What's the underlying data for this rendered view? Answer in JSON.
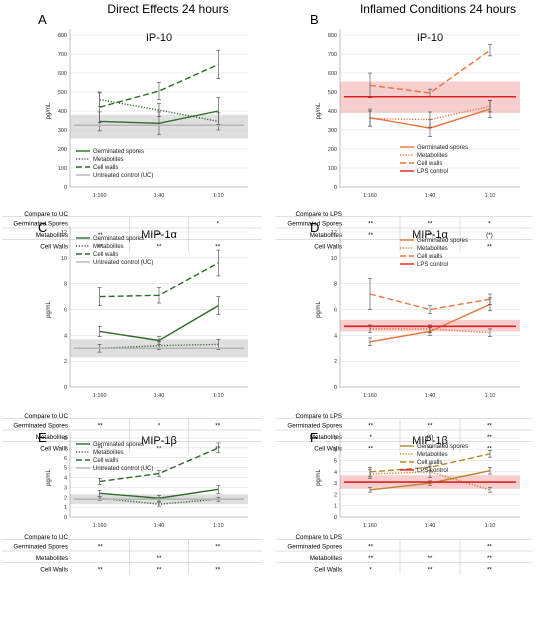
{
  "headers": [
    "Direct Effects 24 hours",
    "Inflamed Conditions 24 hours"
  ],
  "categories": [
    "1:160",
    "1:40",
    "1:10"
  ],
  "ylabel": "pg/mL",
  "chart_data": [
    {
      "panel": "A",
      "type": "line",
      "title": "IP-10",
      "ylim": [
        0,
        800
      ],
      "yticks": [
        0,
        100,
        200,
        300,
        400,
        500,
        600,
        700,
        800
      ],
      "band": [
        255,
        380
      ],
      "series": [
        {
          "name": "Germinated spores",
          "style": "solid",
          "color": "#2e6b2a",
          "values": [
            345,
            335,
            400
          ],
          "err": [
            50,
            60,
            70
          ]
        },
        {
          "name": "Metabolites",
          "style": "dotted",
          "color": "#2e6b2a",
          "values": [
            460,
            405,
            345
          ],
          "err": [
            35,
            35,
            45
          ]
        },
        {
          "name": "Cell walls",
          "style": "dashed",
          "color": "#2e6b2a",
          "values": [
            420,
            505,
            645
          ],
          "err": [
            80,
            45,
            75
          ]
        },
        {
          "name": "Untreated control (UC)",
          "style": "control",
          "color": "#b5b5b5",
          "values": [
            325,
            325,
            325
          ],
          "err": [
            0,
            0,
            0
          ]
        }
      ],
      "table": {
        "header": "Compare to UC",
        "rows": [
          {
            "label": "Germinated Spores",
            "cells": [
              "",
              "",
              "*"
            ]
          },
          {
            "label": "Metabolites",
            "cells": [
              "**",
              "**",
              ""
            ]
          },
          {
            "label": "Cell Walls",
            "cells": [
              "**",
              "**",
              "**"
            ]
          }
        ]
      }
    },
    {
      "panel": "B",
      "type": "line",
      "title": "IP-10",
      "ylim": [
        0,
        800
      ],
      "yticks": [
        0,
        100,
        200,
        300,
        400,
        500,
        600,
        700,
        800
      ],
      "band": [
        390,
        555
      ],
      "series": [
        {
          "name": "Germinated spores",
          "style": "solid",
          "color": "#e8743b",
          "values": [
            365,
            310,
            410
          ],
          "err": [
            45,
            45,
            45
          ]
        },
        {
          "name": "Metabolites",
          "style": "dotted",
          "color": "#e8743b",
          "values": [
            360,
            355,
            425
          ],
          "err": [
            40,
            40,
            30
          ]
        },
        {
          "name": "Cell walls",
          "style": "dashed",
          "color": "#e8743b",
          "values": [
            535,
            495,
            720
          ],
          "err": [
            65,
            20,
            30
          ]
        },
        {
          "name": "LPS control",
          "style": "control",
          "color": "#e02020",
          "values": [
            475,
            475,
            475
          ],
          "err": [
            0,
            0,
            0
          ]
        }
      ],
      "table": {
        "header": "Compare to LPS",
        "rows": [
          {
            "label": "Germinated Spores",
            "cells": [
              "**",
              "**",
              "*"
            ]
          },
          {
            "label": "Metabolites",
            "cells": [
              "**",
              "**",
              "(*)"
            ]
          },
          {
            "label": "Cell Walls",
            "cells": [
              "",
              "",
              "**"
            ]
          }
        ]
      }
    },
    {
      "panel": "C",
      "type": "line",
      "title": "MIP-1α",
      "ylim": [
        0,
        12
      ],
      "yticks": [
        0,
        2,
        4,
        6,
        8,
        10,
        12
      ],
      "band": [
        2.3,
        3.7
      ],
      "series": [
        {
          "name": "Germinated spores",
          "style": "solid",
          "color": "#2e6b2a",
          "values": [
            4.3,
            3.6,
            6.3
          ],
          "err": [
            0.4,
            0.3,
            0.7
          ]
        },
        {
          "name": "Metabolites",
          "style": "dotted",
          "color": "#2e6b2a",
          "values": [
            3.0,
            3.2,
            3.3
          ],
          "err": [
            0.3,
            0.3,
            0.4
          ]
        },
        {
          "name": "Cell walls",
          "style": "dashed",
          "color": "#2e6b2a",
          "values": [
            7.0,
            7.1,
            9.6
          ],
          "err": [
            0.7,
            0.6,
            1.0
          ]
        },
        {
          "name": "Untreated control (UC)",
          "style": "control",
          "color": "#b5b5b5",
          "values": [
            3.0,
            3.0,
            3.0
          ],
          "err": [
            0,
            0,
            0
          ]
        }
      ],
      "table": {
        "header": "Compare to UC",
        "rows": [
          {
            "label": "Germinated Spores",
            "cells": [
              "**",
              "*",
              "**"
            ]
          },
          {
            "label": "Metabolites",
            "cells": [
              "",
              "",
              ""
            ]
          },
          {
            "label": "Cell Walls",
            "cells": [
              "**",
              "**",
              "**"
            ]
          }
        ]
      }
    },
    {
      "panel": "D",
      "type": "line",
      "title": "MIP-1α",
      "ylim": [
        0,
        12
      ],
      "yticks": [
        0,
        2,
        4,
        6,
        8,
        10,
        12
      ],
      "band": [
        4.3,
        5.2
      ],
      "series": [
        {
          "name": "Germinated spores",
          "style": "solid",
          "color": "#e8743b",
          "values": [
            3.5,
            4.3,
            6.4
          ],
          "err": [
            0.3,
            0.3,
            0.5
          ]
        },
        {
          "name": "Metabolites",
          "style": "dotted",
          "color": "#e8743b",
          "values": [
            4.5,
            4.5,
            4.2
          ],
          "err": [
            0.3,
            0.3,
            0.3
          ]
        },
        {
          "name": "Cell walls",
          "style": "dashed",
          "color": "#e8743b",
          "values": [
            7.2,
            6.0,
            6.8
          ],
          "err": [
            1.2,
            0.3,
            0.4
          ]
        },
        {
          "name": "LPS control",
          "style": "control",
          "color": "#e02020",
          "values": [
            4.7,
            4.7,
            4.7
          ],
          "err": [
            0,
            0,
            0
          ]
        }
      ],
      "table": {
        "header": "Compare to LPS",
        "rows": [
          {
            "label": "Germinated Spores",
            "cells": [
              "**",
              "**",
              "**"
            ]
          },
          {
            "label": "Metabolites",
            "cells": [
              "*",
              "(*)",
              "**"
            ]
          },
          {
            "label": "Cell Walls",
            "cells": [
              "**",
              "**",
              "**"
            ]
          }
        ]
      }
    },
    {
      "panel": "E",
      "type": "line",
      "title": "MIP-1β",
      "ylim": [
        0,
        8
      ],
      "yticks": [
        0,
        1,
        2,
        3,
        4,
        5,
        6,
        7,
        8
      ],
      "band": [
        1.3,
        2.3
      ],
      "series": [
        {
          "name": "Germinated spores",
          "style": "solid",
          "color": "#2e6b2a",
          "values": [
            2.4,
            1.9,
            2.8
          ],
          "err": [
            0.3,
            0.3,
            0.4
          ]
        },
        {
          "name": "Metabolites",
          "style": "dotted",
          "color": "#2e6b2a",
          "values": [
            1.9,
            1.3,
            1.8
          ],
          "err": [
            0.2,
            0.2,
            0.2
          ]
        },
        {
          "name": "Cell walls",
          "style": "dashed",
          "color": "#2e6b2a",
          "values": [
            3.6,
            4.4,
            7.0
          ],
          "err": [
            0.3,
            0.3,
            0.5
          ]
        },
        {
          "name": "Untreated control (UC)",
          "style": "control",
          "color": "#b5b5b5",
          "values": [
            1.8,
            1.8,
            1.8
          ],
          "err": [
            0,
            0,
            0
          ]
        }
      ],
      "table": {
        "header": "Compare to UC",
        "rows": [
          {
            "label": "Germinated Spores",
            "cells": [
              "**",
              "",
              "**"
            ]
          },
          {
            "label": "Metabolites",
            "cells": [
              "",
              "**",
              ""
            ]
          },
          {
            "label": "Cell Walls",
            "cells": [
              "**",
              "**",
              "**"
            ]
          }
        ]
      }
    },
    {
      "panel": "F",
      "type": "line",
      "title": "MIP-1β",
      "ylim": [
        0,
        7
      ],
      "yticks": [
        0,
        1,
        2,
        3,
        4,
        5,
        6,
        7
      ],
      "band": [
        2.5,
        3.7
      ],
      "series": [
        {
          "name": "Germinated spores",
          "style": "solid",
          "color": "#b8862b",
          "values": [
            2.4,
            3.0,
            4.1
          ],
          "err": [
            0.2,
            0.2,
            0.3
          ]
        },
        {
          "name": "Metabolites",
          "style": "dotted",
          "color": "#b8862b",
          "values": [
            3.8,
            4.0,
            2.4
          ],
          "err": [
            0.4,
            0.5,
            0.2
          ]
        },
        {
          "name": "Cell walls",
          "style": "dashed",
          "color": "#b8862b",
          "values": [
            4.0,
            4.4,
            5.6
          ],
          "err": [
            0.4,
            0.3,
            0.3
          ]
        },
        {
          "name": "LPS control",
          "style": "control",
          "color": "#e02020",
          "values": [
            3.1,
            3.1,
            3.1
          ],
          "err": [
            0,
            0,
            0
          ]
        }
      ],
      "table": {
        "header": "Compare to LPS",
        "rows": [
          {
            "label": "Germinated Spores",
            "cells": [
              "**",
              "",
              "**"
            ]
          },
          {
            "label": "Metabolites",
            "cells": [
              "**",
              "**",
              "**"
            ]
          },
          {
            "label": "Cell Walls",
            "cells": [
              "*",
              "**",
              "**"
            ]
          }
        ]
      }
    }
  ],
  "colors": {
    "band_uc": "#d9d9d9",
    "band_lps": "#f7c6c6",
    "grid": "#d0d0d0",
    "axis": "#9a9a9a",
    "table_line": "#bfbfbf"
  }
}
